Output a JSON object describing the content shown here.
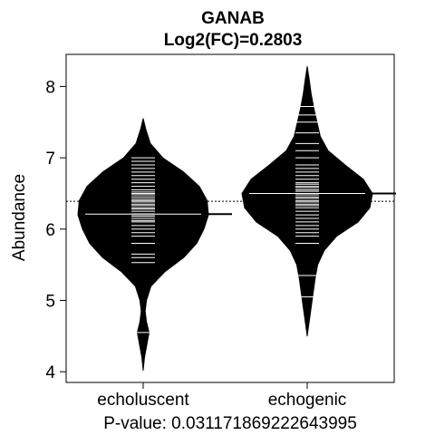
{
  "chart_data": {
    "type": "beanplot",
    "title": "GANAB",
    "subtitle": "Log2(FC)=0.2803",
    "ylabel": "Abundance",
    "xlabel": "",
    "footer": "P-value: 0.0311718692226439​95",
    "categories": [
      "echoluscent",
      "echogenic"
    ],
    "ylim": [
      3.85,
      8.45
    ],
    "yticks": [
      4,
      5,
      6,
      7,
      8
    ],
    "overall_mean": 6.39,
    "colors": {
      "bean": "#000000",
      "line": "#ffffff",
      "axis": "#000000"
    },
    "beans": [
      {
        "name": "echoluscent",
        "mean": 6.21,
        "density": [
          [
            4.02,
            0.0
          ],
          [
            4.2,
            0.02
          ],
          [
            4.4,
            0.06
          ],
          [
            4.55,
            0.09
          ],
          [
            4.7,
            0.05
          ],
          [
            4.85,
            0.03
          ],
          [
            5.0,
            0.05
          ],
          [
            5.2,
            0.12
          ],
          [
            5.4,
            0.33
          ],
          [
            5.6,
            0.62
          ],
          [
            5.8,
            0.82
          ],
          [
            6.0,
            0.93
          ],
          [
            6.2,
            1.0
          ],
          [
            6.4,
            0.98
          ],
          [
            6.6,
            0.86
          ],
          [
            6.8,
            0.62
          ],
          [
            7.0,
            0.3
          ],
          [
            7.2,
            0.11
          ],
          [
            7.4,
            0.04
          ],
          [
            7.55,
            0.0
          ]
        ],
        "points": [
          4.55,
          5.53,
          5.6,
          5.65,
          5.8,
          5.9,
          5.95,
          6.0,
          6.05,
          6.1,
          6.12,
          6.15,
          6.18,
          6.2,
          6.22,
          6.25,
          6.28,
          6.3,
          6.33,
          6.35,
          6.38,
          6.4,
          6.42,
          6.45,
          6.48,
          6.5,
          6.52,
          6.55,
          6.6,
          6.65,
          6.7,
          6.75,
          6.8,
          6.85,
          6.9,
          6.95,
          7.0
        ]
      },
      {
        "name": "echogenic",
        "mean": 6.5,
        "density": [
          [
            4.5,
            0.0
          ],
          [
            4.7,
            0.03
          ],
          [
            4.9,
            0.06
          ],
          [
            5.1,
            0.09
          ],
          [
            5.3,
            0.12
          ],
          [
            5.5,
            0.16
          ],
          [
            5.7,
            0.26
          ],
          [
            5.9,
            0.45
          ],
          [
            6.1,
            0.78
          ],
          [
            6.3,
            0.96
          ],
          [
            6.5,
            1.0
          ],
          [
            6.7,
            0.86
          ],
          [
            6.9,
            0.58
          ],
          [
            7.1,
            0.32
          ],
          [
            7.3,
            0.2
          ],
          [
            7.5,
            0.15
          ],
          [
            7.7,
            0.1
          ],
          [
            7.9,
            0.06
          ],
          [
            8.1,
            0.03
          ],
          [
            8.28,
            0.0
          ]
        ],
        "points": [
          5.05,
          5.35,
          5.8,
          5.9,
          5.95,
          6.0,
          6.05,
          6.1,
          6.15,
          6.2,
          6.25,
          6.3,
          6.33,
          6.35,
          6.38,
          6.4,
          6.43,
          6.45,
          6.48,
          6.5,
          6.53,
          6.55,
          6.58,
          6.6,
          6.63,
          6.65,
          6.7,
          6.75,
          6.8,
          6.85,
          6.9,
          7.0,
          7.1,
          7.2,
          7.35,
          7.5,
          7.6,
          7.72
        ]
      }
    ]
  }
}
